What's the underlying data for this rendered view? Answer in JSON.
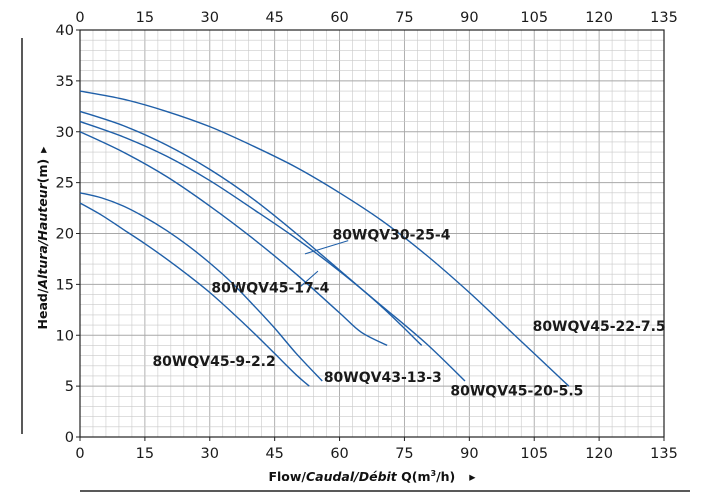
{
  "chart_data": {
    "type": "line",
    "title": "",
    "xlabel": "Flow/Caudal/Débit Q(m³/h)",
    "xlabel_parts": [
      "Flow/",
      "Caudal/Débit",
      " Q(m",
      "3",
      "/h)"
    ],
    "xlabel_arrow": "▸",
    "ylabel": "Head/Altura/Hauteur(m)",
    "ylabel_parts": [
      "Head/",
      "Altura/Hauteur",
      "(m)"
    ],
    "ylabel_arrow": "▸",
    "xlim": [
      0,
      135
    ],
    "ylim": [
      0,
      40
    ],
    "xticks": [
      0,
      15,
      30,
      45,
      60,
      75,
      90,
      105,
      120,
      135
    ],
    "yticks": [
      0,
      5,
      10,
      15,
      20,
      25,
      30,
      35,
      40
    ],
    "x_minor_step": 3,
    "y_minor_step": 1,
    "grid": true,
    "series_color": "#1f5fa8",
    "series": [
      {
        "name": "80WQV45-9-2.2",
        "x": [
          0,
          5,
          10,
          15,
          20,
          25,
          30,
          35,
          40,
          45,
          50,
          53
        ],
        "y": [
          23,
          21.8,
          20.4,
          19,
          17.5,
          15.9,
          14.2,
          12.3,
          10.3,
          8.2,
          6.1,
          5
        ]
      },
      {
        "name": "80WQV43-13-3",
        "x": [
          0,
          5,
          10,
          15,
          20,
          25,
          30,
          35,
          40,
          45,
          50,
          56
        ],
        "y": [
          24,
          23.5,
          22.7,
          21.6,
          20.3,
          18.8,
          17.1,
          15.2,
          13,
          10.7,
          8.2,
          5.5
        ]
      },
      {
        "name": "80WQV45-17-4",
        "x": [
          0,
          10,
          20,
          30,
          40,
          50,
          60,
          65,
          71
        ],
        "y": [
          30,
          28,
          25.6,
          22.7,
          19.5,
          16,
          12.2,
          10.3,
          9
        ]
      },
      {
        "name": "80WQV30-25-4",
        "x": [
          0,
          10,
          20,
          30,
          40,
          50,
          60,
          70,
          79
        ],
        "y": [
          32,
          30.6,
          28.7,
          26.3,
          23.4,
          20,
          16.4,
          12.7,
          9
        ]
      },
      {
        "name": "80WQV45-20-5.5",
        "x": [
          0,
          10,
          20,
          30,
          40,
          50,
          60,
          70,
          80,
          89
        ],
        "y": [
          31,
          29.5,
          27.6,
          25.2,
          22.4,
          19.5,
          16.3,
          12.8,
          9.2,
          5.5
        ]
      },
      {
        "name": "80WQV45-22-7.5",
        "x": [
          0,
          10,
          20,
          30,
          40,
          50,
          60,
          70,
          80,
          90,
          100,
          113
        ],
        "y": [
          34,
          33.2,
          32,
          30.5,
          28.6,
          26.5,
          24,
          21.2,
          17.9,
          14.2,
          10.2,
          5
        ]
      }
    ],
    "labels": [
      {
        "text": "80WQV30-25-4",
        "x": 72,
        "y": 19.4,
        "pointer": [
          [
            62,
            19.3
          ],
          [
            52,
            18
          ]
        ]
      },
      {
        "text": "80WQV45-17-4",
        "x": 44,
        "y": 14.2,
        "pointer": [
          [
            51,
            14.8
          ],
          [
            55,
            16.3
          ]
        ]
      },
      {
        "text": "80WQV45-9-2.2",
        "x": 31,
        "y": 7,
        "pointer": []
      },
      {
        "text": "80WQV43-13-3",
        "x": 70,
        "y": 5.4,
        "pointer": []
      },
      {
        "text": "80WQV45-20-5.5",
        "x": 101,
        "y": 4.1,
        "pointer": []
      },
      {
        "text": "80WQV45-22-7.5",
        "x": 120,
        "y": 10.4,
        "pointer": []
      }
    ]
  }
}
